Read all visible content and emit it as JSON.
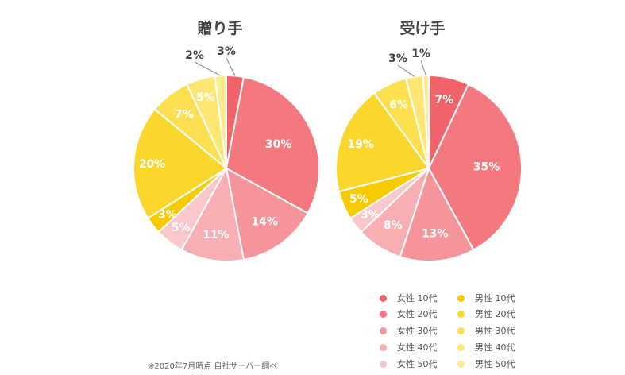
{
  "chart_data": [
    {
      "type": "pie",
      "title": "贈り手",
      "slices": [
        {
          "label": "女性 10代",
          "value": 3,
          "text": "3%"
        },
        {
          "label": "女性 20代",
          "value": 30,
          "text": "30%"
        },
        {
          "label": "女性 30代",
          "value": 14,
          "text": "14%"
        },
        {
          "label": "女性 40代",
          "value": 11,
          "text": "11%"
        },
        {
          "label": "女性 50代",
          "value": 5,
          "text": "5%"
        },
        {
          "label": "男性 10代",
          "value": 3,
          "text": "3%"
        },
        {
          "label": "男性 20代",
          "value": 20,
          "text": "20%"
        },
        {
          "label": "男性 30代",
          "value": 7,
          "text": "7%"
        },
        {
          "label": "男性 40代",
          "value": 5,
          "text": "5%"
        },
        {
          "label": "男性 50代",
          "value": 2,
          "text": "2%"
        }
      ]
    },
    {
      "type": "pie",
      "title": "受け手",
      "slices": [
        {
          "label": "女性 10代",
          "value": 7,
          "text": "7%"
        },
        {
          "label": "女性 20代",
          "value": 35,
          "text": "35%"
        },
        {
          "label": "女性 30代",
          "value": 13,
          "text": "13%"
        },
        {
          "label": "女性 40代",
          "value": 8,
          "text": "8%"
        },
        {
          "label": "女性 50代",
          "value": 3,
          "text": "3%"
        },
        {
          "label": "男性 10代",
          "value": 5,
          "text": "5%"
        },
        {
          "label": "男性 20代",
          "value": 19,
          "text": "19%"
        },
        {
          "label": "男性 30代",
          "value": 6,
          "text": "6%"
        },
        {
          "label": "男性 40代",
          "value": 3,
          "text": "3%"
        },
        {
          "label": "男性 50代",
          "value": 1,
          "text": "1%"
        }
      ]
    }
  ],
  "legend": {
    "placement": "bottom-right",
    "items": [
      {
        "label": "女性 10代",
        "color": "#F2626A"
      },
      {
        "label": "女性 20代",
        "color": "#F4797F"
      },
      {
        "label": "女性 30代",
        "color": "#F5959B"
      },
      {
        "label": "女性 40代",
        "color": "#F8AEB3"
      },
      {
        "label": "女性 50代",
        "color": "#FAC7CA"
      },
      {
        "label": "男性 10代",
        "color": "#F8CB00"
      },
      {
        "label": "男性 20代",
        "color": "#FBD72E"
      },
      {
        "label": "男性 30代",
        "color": "#FCE04F"
      },
      {
        "label": "男性 40代",
        "color": "#FDE673"
      },
      {
        "label": "男性 50代",
        "color": "#FEEC93"
      }
    ]
  },
  "footnote": "※2020年7月時点 自社サーバー調べ"
}
